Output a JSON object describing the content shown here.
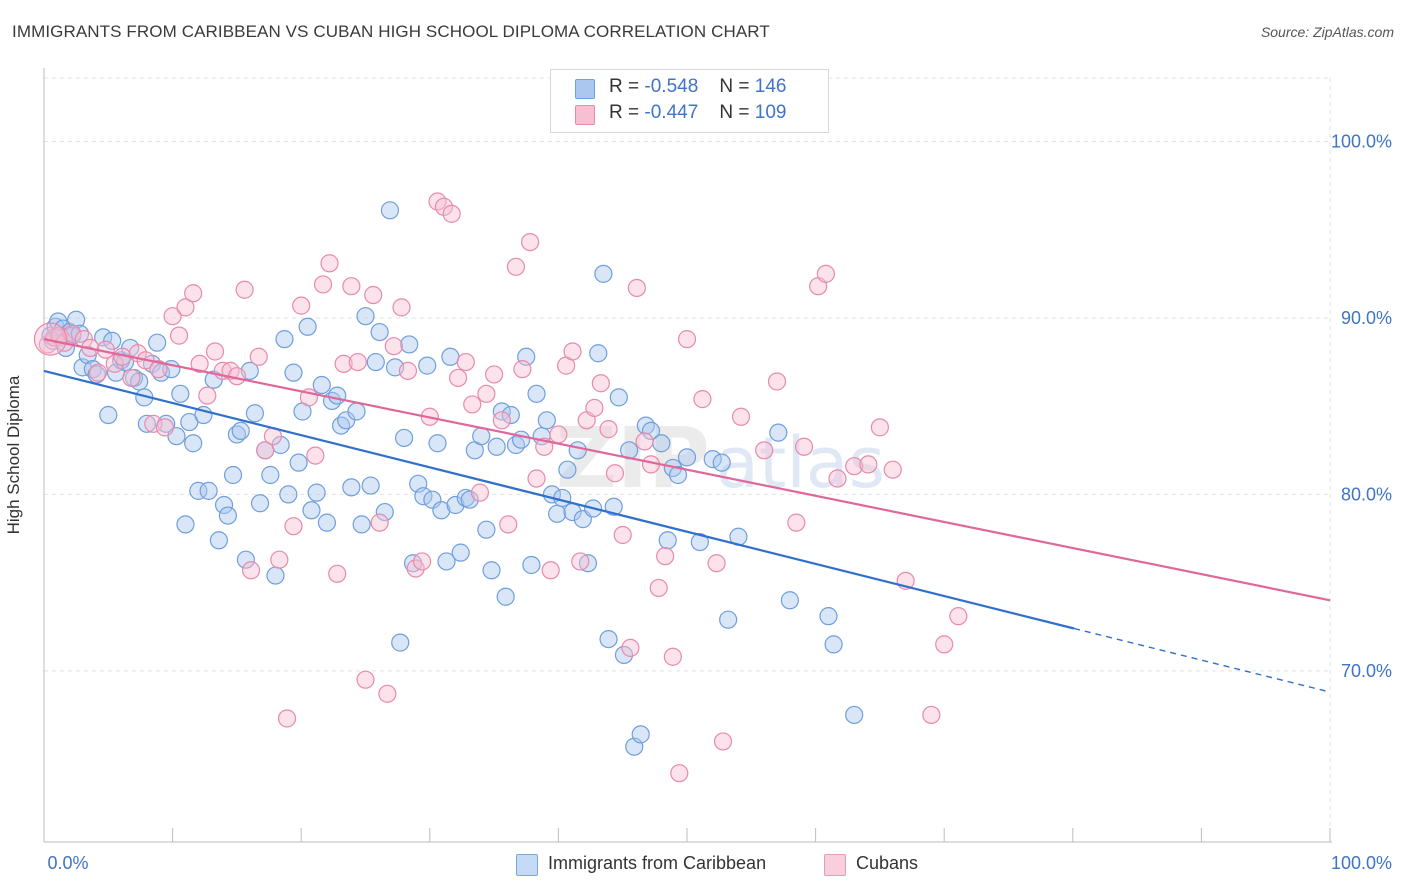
{
  "title": "IMMIGRANTS FROM CARIBBEAN VS CUBAN HIGH SCHOOL DIPLOMA CORRELATION CHART",
  "source": "Source: ZipAtlas.com",
  "watermark": {
    "zip": "ZIP",
    "atlas": "atlas"
  },
  "legend": {
    "rows": [
      {
        "r_label": "R =",
        "r_value": "-0.548",
        "n_label": "N =",
        "n_value": "146",
        "fill": "#aac8ef",
        "stroke": "#6f9fdc"
      },
      {
        "r_label": "R =",
        "r_value": "-0.447",
        "n_label": "N =",
        "n_value": "109",
        "fill": "#f6bfd2",
        "stroke": "#e88aab"
      }
    ]
  },
  "bottom_legend": [
    {
      "label": "Immigrants from Caribbean",
      "fill": "#c5daf5",
      "stroke": "#7ea7de"
    },
    {
      "label": "Cubans",
      "fill": "#f9cfdd",
      "stroke": "#eb9ab6"
    }
  ],
  "chart_data": {
    "type": "scatter",
    "title": "IMMIGRANTS FROM CARIBBEAN VS CUBAN HIGH SCHOOL DIPLOMA CORRELATION CHART",
    "xlabel": "",
    "ylabel": "High School Diploma",
    "xlim": [
      0,
      100
    ],
    "ylim": [
      60.3,
      103.6
    ],
    "x_tick_labels": [
      "0.0%",
      "100.0%"
    ],
    "y_ticks": [
      {
        "value": 100,
        "label": "100.0%"
      },
      {
        "value": 90,
        "label": "90.0%"
      },
      {
        "value": 80,
        "label": "80.0%"
      },
      {
        "value": 70,
        "label": "70.0%"
      }
    ],
    "grid": true,
    "series": [
      {
        "name": "Immigrants from Caribbean",
        "color": "#6f9fdc",
        "fill": "#aac8ef",
        "trend_color": "#2f6fcf",
        "trend": {
          "x0": 0,
          "y0": 87.0,
          "x1": 80.1,
          "y1": 72.4,
          "dash_to_x": 100,
          "dash_to_y": 68.8
        },
        "points": [
          [
            0.5,
            89.0
          ],
          [
            0.7,
            88.7
          ],
          [
            0.9,
            89.5
          ],
          [
            1.1,
            89.8
          ],
          [
            1.3,
            88.9
          ],
          [
            1.5,
            89.4
          ],
          [
            1.7,
            88.3
          ],
          [
            2.0,
            89.2
          ],
          [
            2.2,
            89.0
          ],
          [
            2.5,
            89.9
          ],
          [
            2.8,
            89.1
          ],
          [
            3.0,
            87.2
          ],
          [
            3.4,
            87.9
          ],
          [
            3.8,
            87.1
          ],
          [
            4.1,
            86.8
          ],
          [
            4.6,
            88.9
          ],
          [
            5.0,
            84.5
          ],
          [
            5.3,
            88.7
          ],
          [
            5.6,
            86.9
          ],
          [
            6.0,
            87.6
          ],
          [
            6.3,
            87.5
          ],
          [
            6.7,
            88.3
          ],
          [
            7.0,
            86.6
          ],
          [
            7.4,
            86.4
          ],
          [
            7.8,
            85.5
          ],
          [
            8.0,
            84.0
          ],
          [
            8.4,
            87.4
          ],
          [
            8.8,
            88.6
          ],
          [
            9.1,
            86.9
          ],
          [
            9.5,
            84.0
          ],
          [
            9.9,
            87.1
          ],
          [
            10.3,
            83.3
          ],
          [
            10.6,
            85.7
          ],
          [
            11.0,
            78.3
          ],
          [
            11.3,
            84.1
          ],
          [
            11.6,
            82.9
          ],
          [
            12.0,
            80.2
          ],
          [
            12.4,
            84.5
          ],
          [
            12.8,
            80.2
          ],
          [
            13.2,
            86.5
          ],
          [
            13.6,
            77.4
          ],
          [
            14.0,
            79.4
          ],
          [
            14.3,
            78.8
          ],
          [
            14.7,
            81.1
          ],
          [
            15.0,
            83.4
          ],
          [
            15.3,
            83.6
          ],
          [
            15.7,
            76.3
          ],
          [
            16.0,
            87.0
          ],
          [
            16.4,
            84.6
          ],
          [
            16.8,
            79.5
          ],
          [
            17.2,
            82.5
          ],
          [
            17.6,
            81.1
          ],
          [
            18.0,
            75.4
          ],
          [
            18.4,
            82.8
          ],
          [
            18.7,
            88.8
          ],
          [
            19.0,
            80.0
          ],
          [
            19.4,
            86.9
          ],
          [
            19.8,
            81.8
          ],
          [
            20.1,
            84.7
          ],
          [
            20.5,
            89.5
          ],
          [
            20.8,
            79.1
          ],
          [
            21.2,
            80.1
          ],
          [
            21.6,
            86.2
          ],
          [
            22.0,
            78.4
          ],
          [
            22.4,
            85.3
          ],
          [
            22.8,
            85.6
          ],
          [
            23.1,
            83.9
          ],
          [
            23.5,
            84.2
          ],
          [
            23.9,
            80.4
          ],
          [
            24.3,
            84.7
          ],
          [
            24.7,
            78.3
          ],
          [
            25.0,
            90.1
          ],
          [
            25.4,
            80.5
          ],
          [
            25.8,
            87.5
          ],
          [
            26.1,
            89.2
          ],
          [
            26.5,
            79.0
          ],
          [
            26.9,
            96.1
          ],
          [
            27.3,
            87.2
          ],
          [
            27.7,
            71.6
          ],
          [
            28.0,
            83.2
          ],
          [
            28.4,
            88.5
          ],
          [
            28.7,
            76.1
          ],
          [
            29.1,
            80.6
          ],
          [
            29.5,
            79.9
          ],
          [
            29.8,
            87.3
          ],
          [
            30.2,
            79.7
          ],
          [
            30.6,
            82.9
          ],
          [
            30.9,
            79.1
          ],
          [
            31.3,
            76.2
          ],
          [
            31.6,
            87.8
          ],
          [
            32.0,
            79.4
          ],
          [
            32.4,
            76.7
          ],
          [
            32.8,
            79.8
          ],
          [
            33.1,
            79.7
          ],
          [
            33.5,
            82.5
          ],
          [
            34.0,
            83.3
          ],
          [
            34.4,
            78.0
          ],
          [
            34.8,
            75.7
          ],
          [
            35.2,
            82.7
          ],
          [
            35.6,
            84.7
          ],
          [
            35.9,
            74.2
          ],
          [
            36.3,
            84.5
          ],
          [
            36.7,
            82.8
          ],
          [
            37.1,
            83.1
          ],
          [
            37.5,
            87.8
          ],
          [
            37.9,
            76.0
          ],
          [
            38.3,
            85.7
          ],
          [
            38.7,
            83.3
          ],
          [
            39.1,
            84.2
          ],
          [
            39.5,
            80.0
          ],
          [
            39.9,
            78.9
          ],
          [
            40.3,
            79.8
          ],
          [
            40.7,
            81.4
          ],
          [
            41.1,
            79.0
          ],
          [
            41.5,
            82.5
          ],
          [
            41.9,
            78.6
          ],
          [
            42.3,
            76.1
          ],
          [
            42.7,
            79.2
          ],
          [
            43.1,
            88.0
          ],
          [
            43.5,
            92.5
          ],
          [
            43.9,
            71.8
          ],
          [
            44.3,
            79.3
          ],
          [
            44.7,
            85.5
          ],
          [
            45.1,
            70.9
          ],
          [
            45.5,
            82.5
          ],
          [
            45.9,
            65.7
          ],
          [
            46.4,
            66.4
          ],
          [
            46.8,
            83.9
          ],
          [
            47.2,
            83.6
          ],
          [
            48.0,
            82.9
          ],
          [
            48.5,
            77.4
          ],
          [
            48.9,
            81.5
          ],
          [
            49.3,
            81.1
          ],
          [
            50.0,
            82.1
          ],
          [
            51.0,
            77.3
          ],
          [
            52.0,
            82.0
          ],
          [
            52.7,
            81.8
          ],
          [
            53.2,
            72.9
          ],
          [
            54.0,
            77.6
          ],
          [
            57.1,
            83.5
          ],
          [
            58.0,
            74.0
          ],
          [
            61.0,
            73.1
          ],
          [
            61.4,
            71.5
          ],
          [
            63.0,
            67.5
          ]
        ]
      },
      {
        "name": "Cubans",
        "color": "#e88aab",
        "fill": "#f6bfd2",
        "trend_color": "#e0679a",
        "trend": {
          "x0": 0,
          "y0": 88.8,
          "x1": 100,
          "y1": 74.0
        },
        "points": [
          [
            0.3,
            88.5
          ],
          [
            0.8,
            88.9
          ],
          [
            1.2,
            89.0
          ],
          [
            1.6,
            88.6
          ],
          [
            2.2,
            89.1
          ],
          [
            3.1,
            88.8
          ],
          [
            3.6,
            88.3
          ],
          [
            4.2,
            86.9
          ],
          [
            4.8,
            88.2
          ],
          [
            5.5,
            87.4
          ],
          [
            6.1,
            87.8
          ],
          [
            6.8,
            86.6
          ],
          [
            7.3,
            88.0
          ],
          [
            7.9,
            87.6
          ],
          [
            8.5,
            84.0
          ],
          [
            8.9,
            87.1
          ],
          [
            9.4,
            83.8
          ],
          [
            10.0,
            90.1
          ],
          [
            10.5,
            89.0
          ],
          [
            11.0,
            90.6
          ],
          [
            11.6,
            91.4
          ],
          [
            12.1,
            87.4
          ],
          [
            12.7,
            85.6
          ],
          [
            13.3,
            88.1
          ],
          [
            13.9,
            87.0
          ],
          [
            14.5,
            87.0
          ],
          [
            15.0,
            86.7
          ],
          [
            15.6,
            91.6
          ],
          [
            16.1,
            75.7
          ],
          [
            16.7,
            87.8
          ],
          [
            17.2,
            82.5
          ],
          [
            17.8,
            83.3
          ],
          [
            18.3,
            76.3
          ],
          [
            18.9,
            67.3
          ],
          [
            19.4,
            78.2
          ],
          [
            20.0,
            90.7
          ],
          [
            20.6,
            85.5
          ],
          [
            21.1,
            82.2
          ],
          [
            21.7,
            91.9
          ],
          [
            22.2,
            93.1
          ],
          [
            22.8,
            75.5
          ],
          [
            23.3,
            87.4
          ],
          [
            23.9,
            91.8
          ],
          [
            24.4,
            87.5
          ],
          [
            25.0,
            69.5
          ],
          [
            25.6,
            91.3
          ],
          [
            26.1,
            78.4
          ],
          [
            26.7,
            68.7
          ],
          [
            27.2,
            88.4
          ],
          [
            27.8,
            90.6
          ],
          [
            28.3,
            87.0
          ],
          [
            28.9,
            75.8
          ],
          [
            29.4,
            76.2
          ],
          [
            30.0,
            84.4
          ],
          [
            30.6,
            96.6
          ],
          [
            31.1,
            96.3
          ],
          [
            31.7,
            95.9
          ],
          [
            32.2,
            86.6
          ],
          [
            32.8,
            87.5
          ],
          [
            33.3,
            85.1
          ],
          [
            33.9,
            80.1
          ],
          [
            34.4,
            85.7
          ],
          [
            35.0,
            86.8
          ],
          [
            35.6,
            84.2
          ],
          [
            36.1,
            78.3
          ],
          [
            36.7,
            92.9
          ],
          [
            37.2,
            87.1
          ],
          [
            37.8,
            94.3
          ],
          [
            38.3,
            80.9
          ],
          [
            38.9,
            82.7
          ],
          [
            39.4,
            75.7
          ],
          [
            40.0,
            83.4
          ],
          [
            40.6,
            87.3
          ],
          [
            41.1,
            88.1
          ],
          [
            41.7,
            76.2
          ],
          [
            42.2,
            84.2
          ],
          [
            42.8,
            84.9
          ],
          [
            43.3,
            86.3
          ],
          [
            43.9,
            83.7
          ],
          [
            44.4,
            81.2
          ],
          [
            45.0,
            77.7
          ],
          [
            45.6,
            71.3
          ],
          [
            46.1,
            91.7
          ],
          [
            46.7,
            83.0
          ],
          [
            47.2,
            81.7
          ],
          [
            47.8,
            74.7
          ],
          [
            48.3,
            76.5
          ],
          [
            48.9,
            70.8
          ],
          [
            49.4,
            64.2
          ],
          [
            50.0,
            88.8
          ],
          [
            51.2,
            85.4
          ],
          [
            52.3,
            76.1
          ],
          [
            52.8,
            66.0
          ],
          [
            54.2,
            84.4
          ],
          [
            56.0,
            82.5
          ],
          [
            57.0,
            86.4
          ],
          [
            58.5,
            78.4
          ],
          [
            59.1,
            82.7
          ],
          [
            60.2,
            91.8
          ],
          [
            60.8,
            92.5
          ],
          [
            61.7,
            80.9
          ],
          [
            63.0,
            81.6
          ],
          [
            64.1,
            81.7
          ],
          [
            65.0,
            83.8
          ],
          [
            66.0,
            81.4
          ],
          [
            67.0,
            75.1
          ],
          [
            69.0,
            67.5
          ],
          [
            70.0,
            71.5
          ],
          [
            71.1,
            73.1
          ]
        ]
      }
    ]
  }
}
